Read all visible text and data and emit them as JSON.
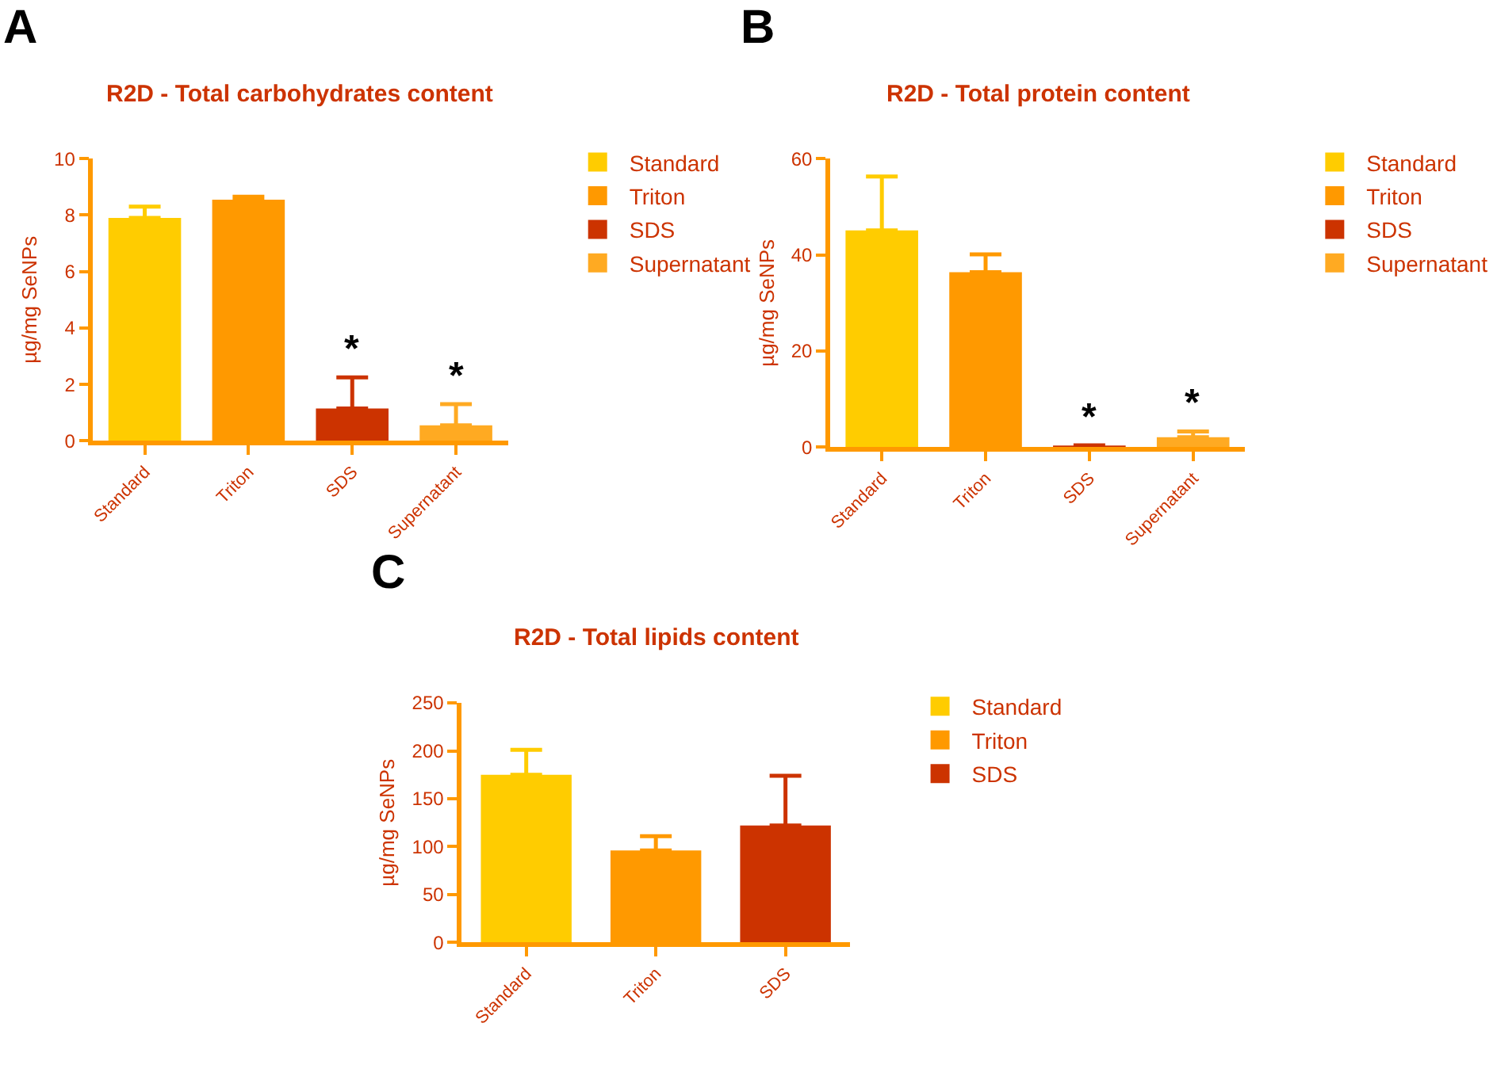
{
  "chart_data": [
    {
      "type": "bar",
      "title": "R2D - Total carbohydrates content",
      "ylabel": "µg/mg SeNPs",
      "categories": [
        "Standard",
        "Triton",
        "SDS",
        "Supernatant"
      ],
      "series": [
        {
          "name": "Standard",
          "color": "#ffcc00",
          "values": [
            7.9,
            null,
            null,
            null
          ],
          "errors": [
            [
              7.9,
              8.3
            ],
            null,
            null,
            null
          ]
        },
        {
          "name": "Triton",
          "color": "#ff9900",
          "values": [
            null,
            8.55,
            null,
            null
          ],
          "errors": [
            null,
            [
              8.55,
              8.65
            ],
            null,
            null
          ]
        },
        {
          "name": "SDS",
          "color": "#cc3300",
          "values": [
            null,
            null,
            1.15,
            null
          ],
          "errors": [
            null,
            null,
            [
              1.15,
              2.25
            ],
            null
          ]
        },
        {
          "name": "Supernatant",
          "color": "#ffaa22",
          "values": [
            null,
            null,
            null,
            0.55
          ],
          "errors": [
            null,
            null,
            null,
            [
              0.55,
              1.3
            ]
          ]
        }
      ],
      "ylim": [
        0,
        10
      ],
      "yticks": [
        0,
        2,
        4,
        6,
        8,
        10
      ],
      "legend": "right",
      "annotations": [
        "A",
        {
          "text": "*",
          "x": "SDS",
          "y": 2.25
        },
        {
          "text": "*",
          "x": "Supernatant",
          "y": 1.3
        }
      ]
    },
    {
      "type": "bar",
      "title": "R2D - Total protein content",
      "ylabel": "µg/mg SeNPs",
      "categories": [
        "Standard",
        "Triton",
        "SDS",
        "Supernatant"
      ],
      "series": [
        {
          "name": "Standard",
          "color": "#ffcc00",
          "values": [
            45.1,
            null,
            null,
            null
          ],
          "errors": [
            [
              45.1,
              56.3
            ],
            null,
            null,
            null
          ]
        },
        {
          "name": "Triton",
          "color": "#ff9900",
          "values": [
            null,
            36.4,
            null,
            null
          ],
          "errors": [
            null,
            [
              36.4,
              40.1
            ],
            null,
            null
          ]
        },
        {
          "name": "SDS",
          "color": "#cc3300",
          "values": [
            null,
            null,
            0.3,
            null
          ],
          "errors": [
            null,
            null,
            [
              0.3,
              0.4
            ],
            null
          ]
        },
        {
          "name": "Supernatant",
          "color": "#ffaa22",
          "values": [
            null,
            null,
            null,
            2.1
          ],
          "errors": [
            null,
            null,
            null,
            [
              2.1,
              3.3
            ]
          ]
        }
      ],
      "ylim": [
        0,
        60
      ],
      "yticks": [
        0,
        20,
        40,
        60
      ],
      "legend": "right",
      "annotations": [
        "B",
        {
          "text": "*",
          "x": "SDS",
          "y": 0.4
        },
        {
          "text": "*",
          "x": "Supernatant",
          "y": 3.3
        }
      ]
    },
    {
      "type": "bar",
      "title": "R2D - Total lipids content",
      "ylabel": "µg/mg SeNPs",
      "categories": [
        "Standard",
        "Triton",
        "SDS"
      ],
      "series": [
        {
          "name": "Standard",
          "color": "#ffcc00",
          "values": [
            175,
            null,
            null
          ],
          "errors": [
            [
              175,
              201
            ],
            null,
            null
          ]
        },
        {
          "name": "Triton",
          "color": "#ff9900",
          "values": [
            null,
            96,
            null
          ],
          "errors": [
            null,
            [
              96,
              111
            ],
            null
          ]
        },
        {
          "name": "SDS",
          "color": "#cc3300",
          "values": [
            null,
            null,
            122
          ],
          "errors": [
            null,
            null,
            [
              122,
              174
            ]
          ]
        }
      ],
      "ylim": [
        0,
        250
      ],
      "yticks": [
        0,
        50,
        100,
        150,
        200,
        250
      ],
      "legend": "right",
      "annotations": [
        "C"
      ]
    }
  ]
}
